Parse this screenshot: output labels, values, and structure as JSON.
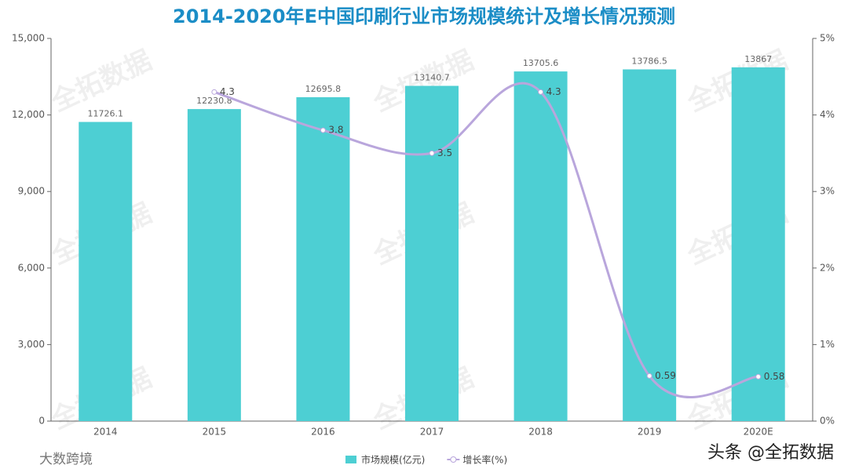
{
  "chart_data": {
    "type": "bar",
    "title": "2014-2020年E中国印刷行业市场规模统计及增长情况预测",
    "categories": [
      "2014",
      "2015",
      "2016",
      "2017",
      "2018",
      "2019",
      "2020E"
    ],
    "series": [
      {
        "name": "市场规模(亿元)",
        "color": "#4dcfd3",
        "values": [
          11726.1,
          12230.8,
          12695.8,
          13140.7,
          13705.6,
          13786.5,
          13867
        ]
      },
      {
        "name": "增长率(%)",
        "color": "#b9a6dc",
        "type": "line",
        "axis": "y2",
        "values": [
          null,
          4.3,
          3.8,
          3.5,
          4.3,
          0.59,
          0.58
        ]
      }
    ],
    "ylim": [
      0,
      15000
    ],
    "yticks": [
      {
        "value": 0,
        "label": "0"
      },
      {
        "value": 3000,
        "label": "3,000"
      },
      {
        "value": 6000,
        "label": "6,000"
      },
      {
        "value": 9000,
        "label": "9,000"
      },
      {
        "value": 12000,
        "label": "12,000"
      },
      {
        "value": 15000,
        "label": "15,000"
      }
    ],
    "y2lim": [
      0,
      5
    ],
    "y2ticks": [
      {
        "value": 0,
        "label": "0%"
      },
      {
        "value": 1,
        "label": "1%"
      },
      {
        "value": 2,
        "label": "2%"
      },
      {
        "value": 3,
        "label": "3%"
      },
      {
        "value": 4,
        "label": "4%"
      },
      {
        "value": 5,
        "label": "5%"
      }
    ],
    "legend": "bottom",
    "watermark": "全拓数据",
    "footer_left": "大数跨境",
    "footer_right": "头条 @全拓数据"
  }
}
